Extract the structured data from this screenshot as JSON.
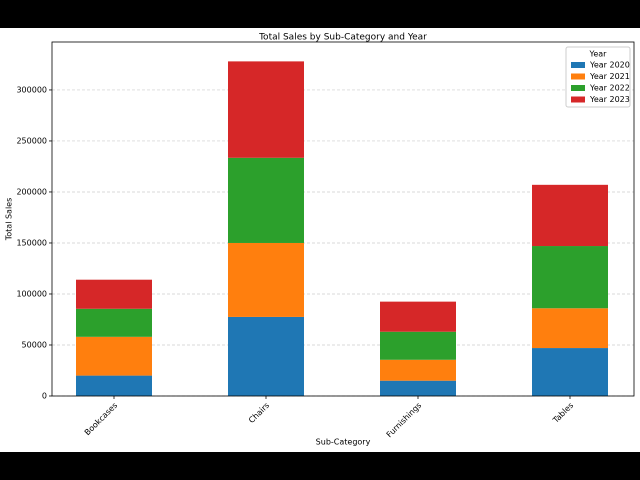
{
  "chart_data": {
    "type": "bar",
    "stacked": true,
    "title": "Total Sales by Sub-Category and Year",
    "x_label": "Sub-Category",
    "y_label": "Total Sales",
    "categories": [
      "Bookcases",
      "Chairs",
      "Furnishings",
      "Tables"
    ],
    "series": [
      {
        "name": "Year 2020",
        "color": "#1f77b4",
        "values": [
          20000,
          77500,
          15000,
          47000
        ]
      },
      {
        "name": "Year 2021",
        "color": "#ff7f0e",
        "values": [
          38000,
          72500,
          20500,
          39000
        ]
      },
      {
        "name": "Year 2022",
        "color": "#2ca02c",
        "values": [
          27500,
          83500,
          27500,
          61000
        ]
      },
      {
        "name": "Year 2023",
        "color": "#d62728",
        "values": [
          28500,
          94500,
          29500,
          60000
        ]
      }
    ],
    "legend_title": "Year",
    "legend": "upper right",
    "ylim": [
      0,
      347000
    ],
    "yticks": [
      0,
      50000,
      100000,
      150000,
      200000,
      250000,
      300000
    ],
    "grid": true
  }
}
